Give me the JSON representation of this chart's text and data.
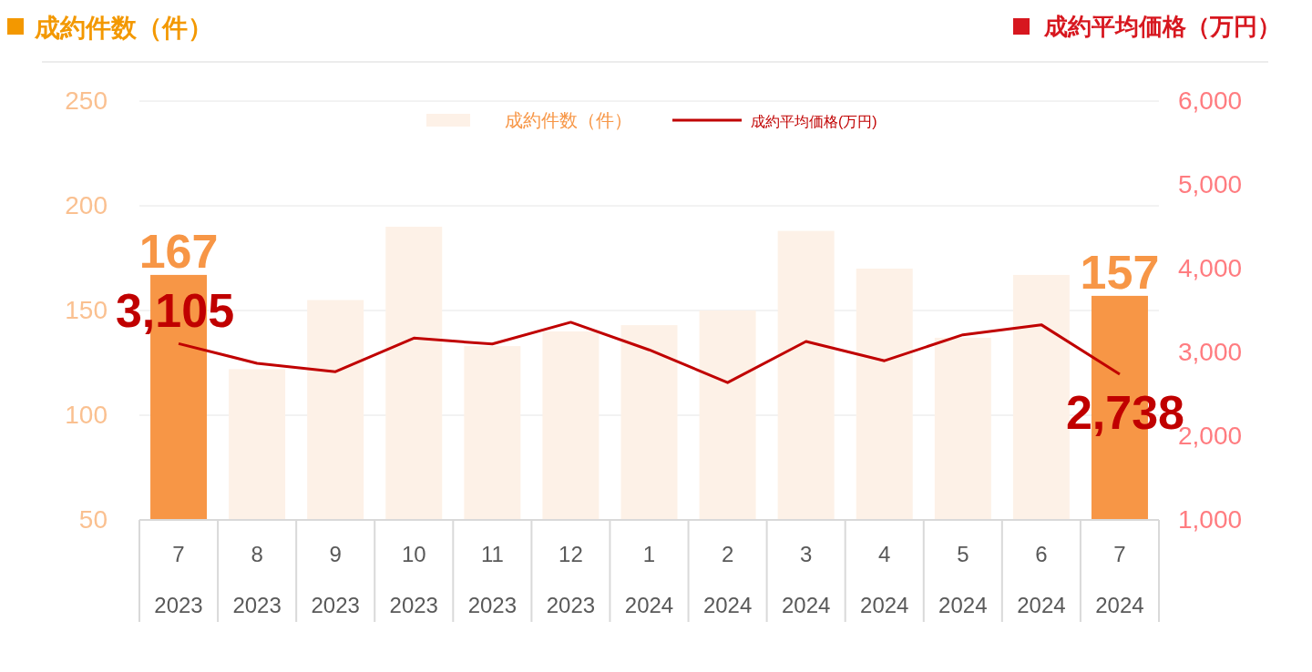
{
  "chart_data": {
    "type": "bar",
    "ylabel": "成約件数（件）",
    "y2label": "成約平均価格（万円）",
    "categories": [
      "7\n2023",
      "8\n2023",
      "9\n2023",
      "10\n2023",
      "11\n2023",
      "12\n2023",
      "1\n2024",
      "2\n2024",
      "3\n2024",
      "4\n2024",
      "5\n2024",
      "6\n2024",
      "7\n2024"
    ],
    "series": [
      {
        "name": "成約件数（件）",
        "color": "#fdf1e7",
        "colors": [
          "#f79646",
          "#fdf1e7",
          "#fdf1e7",
          "#fdf1e7",
          "#fdf1e7",
          "#fdf1e7",
          "#fdf1e7",
          "#fdf1e7",
          "#fdf1e7",
          "#fdf1e7",
          "#fdf1e7",
          "#fdf1e7",
          "#f79646"
        ],
        "values": [
          167,
          122,
          155,
          190,
          133,
          140,
          143,
          150,
          188,
          170,
          137,
          167,
          157
        ],
        "value_labels": [
          "167",
          null,
          null,
          null,
          null,
          null,
          null,
          null,
          null,
          null,
          null,
          null,
          "157"
        ]
      },
      {
        "name": "成約平均価格(万円)",
        "type": "line",
        "axis": "y2",
        "color": "#c00000",
        "values": [
          3105,
          2870,
          2770,
          3170,
          3100,
          3360,
          3030,
          2640,
          3130,
          2900,
          3210,
          3330,
          2738
        ],
        "value_labels": [
          "3,105",
          null,
          null,
          null,
          null,
          null,
          null,
          null,
          null,
          null,
          null,
          null,
          "2,738"
        ]
      }
    ],
    "ylim": [
      50,
      250
    ],
    "yticks": [
      50,
      100,
      150,
      200,
      250
    ],
    "y2lim": [
      1000,
      6000
    ],
    "y2ticks": [
      {
        "value": 1000,
        "label": "1,000"
      },
      {
        "value": 2000,
        "label": "2,000"
      },
      {
        "value": 3000,
        "label": "3,000"
      },
      {
        "value": 4000,
        "label": "4,000"
      },
      {
        "value": 5000,
        "label": "5,000"
      },
      {
        "value": 6000,
        "label": "6,000"
      }
    ],
    "grid": "y",
    "legend": "top",
    "marker": "none",
    "line_style": "solid"
  }
}
